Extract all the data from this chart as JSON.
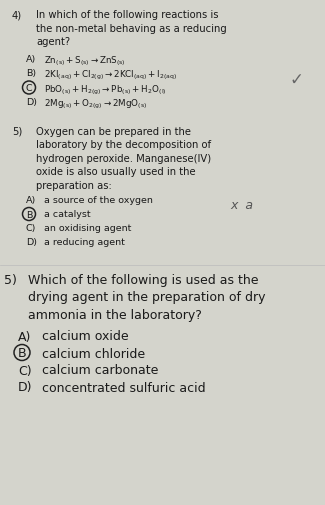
{
  "bg_color": "#d4d4cc",
  "text_color": "#1a1a1a",
  "circle_color": "#222222",
  "figsize": [
    3.25,
    5.06
  ],
  "dpi": 100,
  "q4": {
    "num": "4)",
    "question": [
      "In which of the following reactions is",
      "the non-metal behaving as a reducing",
      "agent?"
    ],
    "options": [
      {
        "letter": "A)",
        "text_math": "$\\rm Zn_{(s)} + S_{(s)} \\rightarrow ZnS_{(s)}$",
        "circled": false
      },
      {
        "letter": "B)",
        "text_math": "$\\rm 2KI_{(aq)} + Cl_{2(g)} \\rightarrow 2KCl_{(aq)} + I_{2(aq)}$",
        "circled": false
      },
      {
        "letter": "C)",
        "text_math": "$\\rm PbO_{(s)} + H_{2(g)} \\rightarrow Pb_{(s)} + H_2O_{(l)}$",
        "circled": true
      },
      {
        "letter": "D)",
        "text_math": "$\\rm 2Mg_{(s)} + O_{2(g)} \\rightarrow 2MgO_{(s)}$",
        "circled": false
      }
    ],
    "checkmark": true
  },
  "q5": {
    "num": "5)",
    "question": [
      "Oxygen can be prepared in the",
      "laboratory by the decomposition of",
      "hydrogen peroxide. Manganese(IV)",
      "oxide is also usually used in the",
      "preparation as:"
    ],
    "options": [
      {
        "letter": "A)",
        "text": "a source of the oxygen",
        "circled": false
      },
      {
        "letter": "B)",
        "text": "a catalyst",
        "circled": true
      },
      {
        "letter": "C)",
        "text": "an oxidising agent",
        "circled": false
      },
      {
        "letter": "D)",
        "text": "a reducing agent",
        "circled": false
      }
    ],
    "annotation": "x  a"
  },
  "q6": {
    "num": "5)",
    "question": [
      "Which of the following is used as the",
      "drying agent in the preparation of dry",
      "ammonia in the laboratory?"
    ],
    "options": [
      {
        "letter": "A)",
        "text": "calcium oxide",
        "circled": false
      },
      {
        "letter": "B)",
        "text": "calcium chloride",
        "circled": true
      },
      {
        "letter": "C)",
        "text": "calcium carbonate",
        "circled": false
      },
      {
        "letter": "D)",
        "text": "concentrated sulfuric acid",
        "circled": false
      }
    ]
  }
}
